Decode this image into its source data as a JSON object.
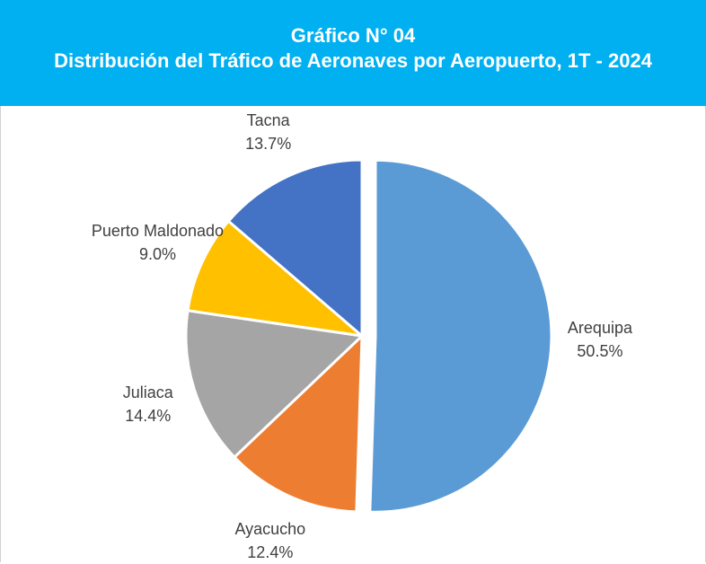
{
  "chart_data": {
    "type": "pie",
    "title": "Gráfico N° 04",
    "subtitle": "Distribución del Tráfico de Aeronaves por Aeropuerto, 1T - 2024",
    "categories": [
      "Arequipa",
      "Ayacucho",
      "Juliaca",
      "Puerto Maldonado",
      "Tacna"
    ],
    "values": [
      50.5,
      12.4,
      14.4,
      9.0,
      13.7
    ],
    "value_labels": [
      "50.5%",
      "12.4%",
      "14.4%",
      "9.0%",
      "13.7%"
    ],
    "colors": [
      "#5b9bd5",
      "#ed7d31",
      "#a5a5a5",
      "#ffc000",
      "#4472c4"
    ]
  }
}
